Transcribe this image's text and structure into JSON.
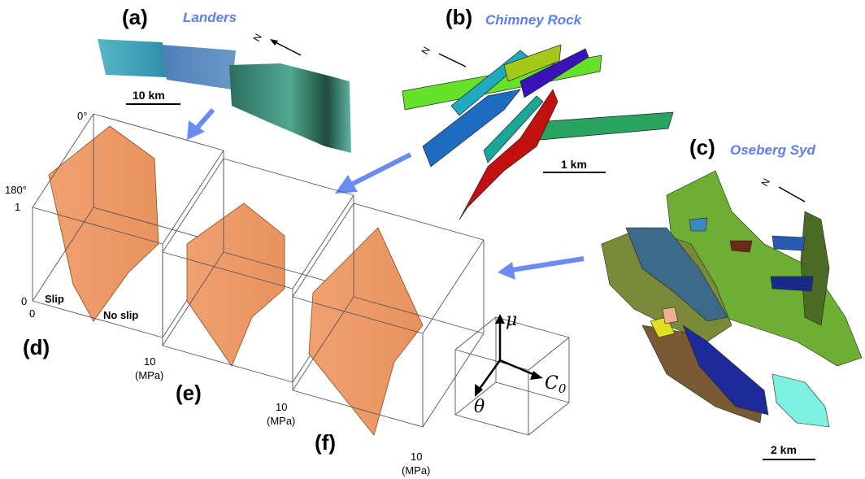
{
  "panels": [
    {
      "label": "(a)",
      "name": "Landers",
      "scale": "10 km",
      "north": "N"
    },
    {
      "label": "(b)",
      "name": "Chimney Rock",
      "scale": "1 km",
      "north": "N"
    },
    {
      "label": "(c)",
      "name": "Oseberg Syd",
      "scale": "2 km",
      "north": "N"
    }
  ],
  "plots": [
    {
      "label": "(d)",
      "x_max": "10",
      "x_unit": "(MPa)",
      "z_min": "0°",
      "z_max": "180°",
      "y_max": "1",
      "y_min": "0",
      "x_min": "0",
      "region_left": "Slip",
      "region_right": "No slip"
    },
    {
      "label": "(e)",
      "x_max": "10",
      "x_unit": "(MPa)"
    },
    {
      "label": "(f)",
      "x_max": "10",
      "x_unit": "(MPa)"
    }
  ],
  "axes_key": {
    "y": "μ",
    "x": "C",
    "x_sub": "0",
    "z": "θ"
  }
}
